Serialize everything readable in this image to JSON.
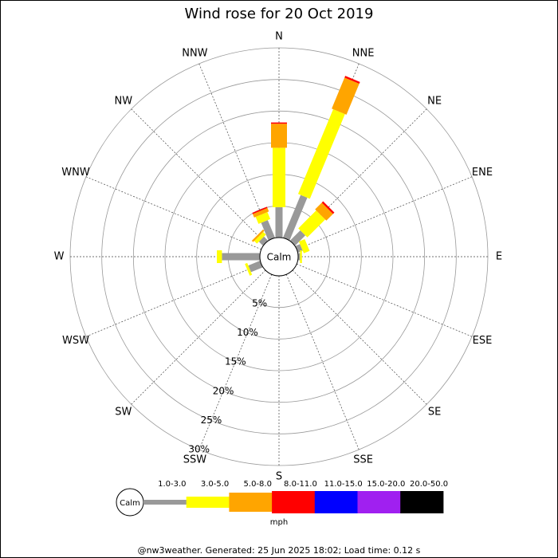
{
  "chart_data": {
    "type": "windrose",
    "title": "Wind rose for 20 Oct 2019",
    "directions": [
      "N",
      "NNE",
      "NE",
      "ENE",
      "E",
      "ESE",
      "SE",
      "SSE",
      "S",
      "SSW",
      "SW",
      "WSW",
      "W",
      "WNW",
      "NW",
      "NNW"
    ],
    "series": [
      {
        "name": "1.0-3.0",
        "color": "#999999",
        "values": [
          4.8,
          7.3,
          2.3,
          0.8,
          0.3,
          0,
          0,
          0,
          0,
          0,
          0,
          2.0,
          6.0,
          0,
          0.9,
          3.0
        ]
      },
      {
        "name": "3.0-5.0",
        "color": "#ffff00",
        "values": [
          9.4,
          14.5,
          4.0,
          1.0,
          0.3,
          0,
          0,
          0,
          0,
          0,
          0,
          0.4,
          0.8,
          0,
          0.6,
          1.2
        ]
      },
      {
        "name": "5.0-8.0",
        "color": "#ffa500",
        "values": [
          3.8,
          5.3,
          1.5,
          0,
          0,
          0,
          0,
          0,
          0,
          0,
          0,
          0,
          0,
          0,
          0.3,
          0.6
        ]
      },
      {
        "name": "8.0-11.0",
        "color": "#ff0000",
        "values": [
          0.2,
          0.3,
          0.3,
          0,
          0,
          0,
          0,
          0,
          0,
          0,
          0,
          0,
          0,
          0,
          0,
          0.2
        ]
      },
      {
        "name": "11.0-15.0",
        "color": "#0000ff",
        "values": [
          0,
          0,
          0,
          0,
          0,
          0,
          0,
          0,
          0,
          0,
          0,
          0,
          0,
          0,
          0,
          0
        ]
      },
      {
        "name": "15.0-20.0",
        "color": "#a020f0",
        "values": [
          0,
          0,
          0,
          0,
          0,
          0,
          0,
          0,
          0,
          0,
          0,
          0,
          0,
          0,
          0,
          0
        ]
      },
      {
        "name": "20.0-50.0",
        "color": "#000000",
        "values": [
          0,
          0,
          0,
          0,
          0,
          0,
          0,
          0,
          0,
          0,
          0,
          0,
          0,
          0,
          0,
          0
        ]
      }
    ],
    "rlim": [
      0,
      30
    ],
    "rticks": [
      {
        "value": 5,
        "label": "5%"
      },
      {
        "value": 10,
        "label": "10%"
      },
      {
        "value": 15,
        "label": "15%"
      },
      {
        "value": 20,
        "label": "20%"
      },
      {
        "value": 25,
        "label": "25%"
      },
      {
        "value": 30,
        "label": "30%"
      }
    ],
    "center_label": "Calm",
    "units": "mph"
  },
  "footer": "@nw3weather. Generated: 25 Jun 2025 18:02; Load time: 0.12 s"
}
